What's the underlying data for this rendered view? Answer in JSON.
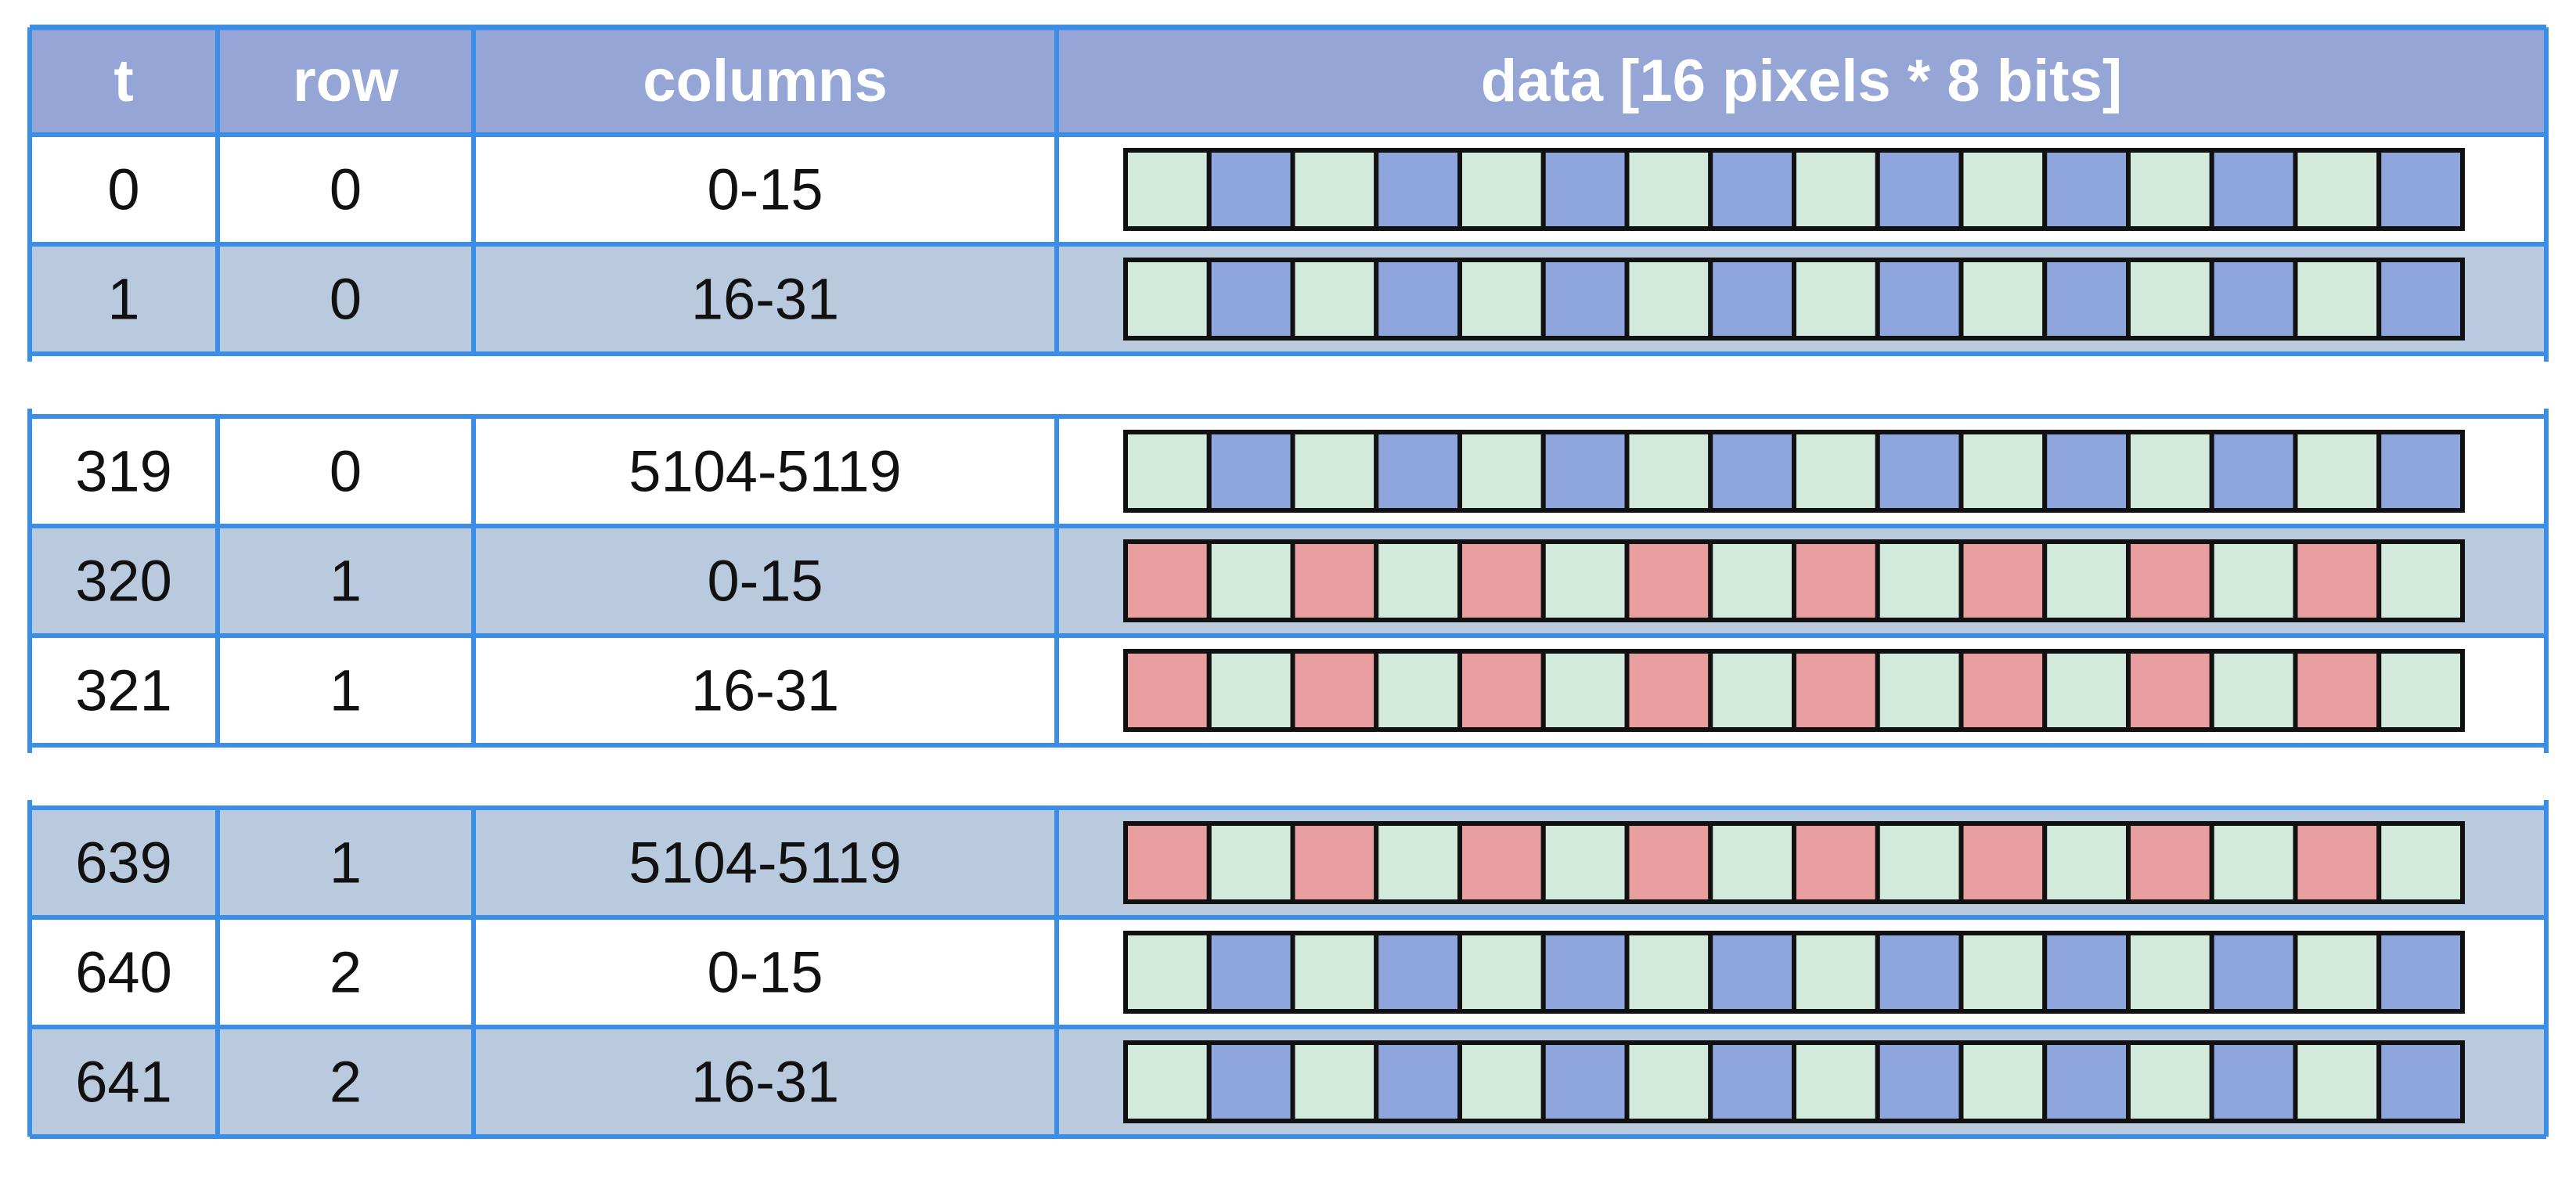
{
  "colors": {
    "header_bg": "#95a6d6",
    "row_white": "#ffffff",
    "row_shaded": "#b9c9de",
    "grid_line": "#3b8ee8",
    "pixel_green": "#d1eadb",
    "pixel_blue": "#8fa5dd",
    "pixel_red": "#e89e9f",
    "pixel_border": "#111111"
  },
  "table": {
    "headers": {
      "t": "t",
      "row": "row",
      "columns": "columns",
      "data": "data [16 pixels * 8 bits]"
    },
    "blocks": [
      {
        "rows": [
          {
            "t": "0",
            "row": "0",
            "columns": "0-15",
            "shaded": false,
            "pattern": [
              "green",
              "blue"
            ]
          },
          {
            "t": "1",
            "row": "0",
            "columns": "16-31",
            "shaded": true,
            "pattern": [
              "green",
              "blue"
            ]
          }
        ]
      },
      {
        "rows": [
          {
            "t": "319",
            "row": "0",
            "columns": "5104-5119",
            "shaded": false,
            "pattern": [
              "green",
              "blue"
            ]
          },
          {
            "t": "320",
            "row": "1",
            "columns": "0-15",
            "shaded": true,
            "pattern": [
              "red",
              "green"
            ]
          },
          {
            "t": "321",
            "row": "1",
            "columns": "16-31",
            "shaded": false,
            "pattern": [
              "red",
              "green"
            ]
          }
        ]
      },
      {
        "rows": [
          {
            "t": "639",
            "row": "1",
            "columns": "5104-5119",
            "shaded": true,
            "pattern": [
              "red",
              "green"
            ]
          },
          {
            "t": "640",
            "row": "2",
            "columns": "0-15",
            "shaded": false,
            "pattern": [
              "green",
              "blue"
            ]
          },
          {
            "t": "641",
            "row": "2",
            "columns": "16-31",
            "shaded": true,
            "pattern": [
              "green",
              "blue"
            ]
          }
        ]
      }
    ]
  }
}
